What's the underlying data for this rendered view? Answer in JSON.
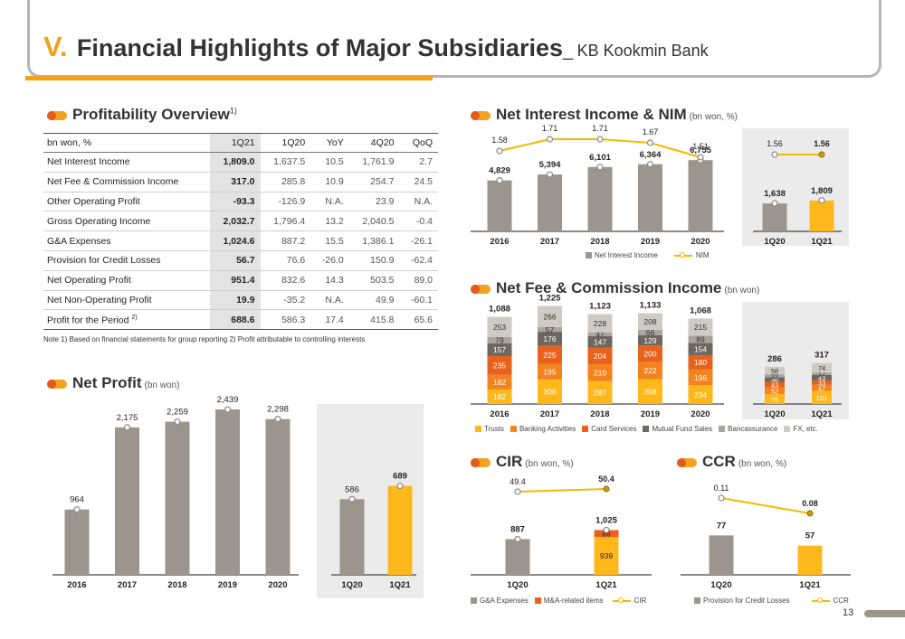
{
  "header": {
    "number": "V.",
    "title": "Financial Highlights of Major Subsidiaries",
    "separator": "_",
    "subtitle": "KB Kookmin Bank"
  },
  "colors": {
    "accent": "#f4a11d",
    "accent_dark": "#e25a1c",
    "bar_gray": "#9b958d",
    "bar_yellow": "#ffb81c",
    "panel_bg": "#ebebeb"
  },
  "profitability": {
    "title": "Profitability Overview",
    "footnote_mark": "1)",
    "columns": [
      "bn won, %",
      "1Q21",
      "1Q20",
      "YoY",
      "4Q20",
      "QoQ"
    ],
    "rows": [
      [
        "Net Interest Income",
        "1,809.0",
        "1,637.5",
        "10.5",
        "1,761.9",
        "2.7"
      ],
      [
        "Net Fee & Commission Income",
        "317.0",
        "285.8",
        "10.9",
        "254.7",
        "24.5"
      ],
      [
        "Other Operating Profit",
        "-93.3",
        "-126.9",
        "N.A.",
        "23.9",
        "N.A."
      ],
      [
        "Gross Operating Income",
        "2,032.7",
        "1,796.4",
        "13.2",
        "2,040.5",
        "-0.4"
      ],
      [
        "G&A Expenses",
        "1,024.6",
        "887.2",
        "15.5",
        "1,386.1",
        "-26.1"
      ],
      [
        "Provision for Credit Losses",
        "56.7",
        "76.6",
        "-26.0",
        "150.9",
        "-62.4"
      ],
      [
        "Net Operating Profit",
        "951.4",
        "832.6",
        "14.3",
        "503.5",
        "89.0"
      ],
      [
        "Net Non-Operating Profit",
        "19.9",
        "-35.2",
        "N.A.",
        "49.9",
        "-60.1"
      ],
      [
        "Profit for the Period",
        "688.6",
        "586.3",
        "17.4",
        "415.8",
        "65.6"
      ]
    ],
    "row9_mark": "2)",
    "note": "Note 1) Based on financial statements for group reporting   2) Profit attributable to controlling interests"
  },
  "net_profit": {
    "title": "Net Profit",
    "unit": "(bn won)"
  },
  "nii": {
    "title": "Net Interest Income & NIM",
    "unit": "(bn won, %)",
    "legend_bar": "Net Interest Income",
    "legend_line": "NIM"
  },
  "fee": {
    "title": "Net Fee & Commission Income",
    "unit": "(bn won)",
    "legend": [
      "Trusts",
      "Banking Activities",
      "Card Services",
      "Mutual Fund Sales",
      "Bancassurance",
      "FX, etc."
    ]
  },
  "cir": {
    "title": "CIR",
    "unit": "(bn won, %)",
    "legend": [
      "G&A Expenses",
      "M&A-related items",
      "CIR"
    ]
  },
  "ccr": {
    "title": "CCR",
    "unit": "(bn won, %)",
    "legend": [
      "Provision for Credit Losses",
      "CCR"
    ]
  },
  "page_number": "13",
  "chart_data": [
    {
      "id": "net_profit_annual",
      "type": "bar",
      "categories": [
        "2016",
        "2017",
        "2018",
        "2019",
        "2020"
      ],
      "values": [
        964,
        2175,
        2259,
        2439,
        2298
      ],
      "labels": [
        "964",
        "2,175",
        "2,259",
        "2,439",
        "2,298"
      ],
      "ylim": [
        0,
        2800
      ]
    },
    {
      "id": "net_profit_quarterly",
      "type": "bar",
      "categories": [
        "1Q20",
        "1Q21"
      ],
      "values": [
        586,
        689
      ],
      "labels": [
        "586",
        "689"
      ],
      "ylim": [
        0,
        1400
      ]
    },
    {
      "id": "nii_annual",
      "type": "bar",
      "categories": [
        "2016",
        "2017",
        "2018",
        "2019",
        "2020"
      ],
      "series": [
        {
          "name": "Net Interest Income",
          "values": [
            4829,
            5394,
            6101,
            6364,
            6755
          ],
          "labels": [
            "4,829",
            "5,394",
            "6,101",
            "6,364",
            "6,755"
          ]
        },
        {
          "name": "NIM",
          "type": "line",
          "values": [
            1.58,
            1.71,
            1.71,
            1.67,
            1.51
          ],
          "labels": [
            "1.58",
            "1.71",
            "1.71",
            "1.67",
            "1.51"
          ]
        }
      ],
      "ylim": [
        0,
        12000
      ],
      "y2lim": [
        1.0,
        1.8
      ]
    },
    {
      "id": "nii_quarterly",
      "type": "bar",
      "categories": [
        "1Q20",
        "1Q21"
      ],
      "series": [
        {
          "name": "Net Interest Income",
          "values": [
            1638,
            1809
          ],
          "labels": [
            "1,638",
            "1,809"
          ]
        },
        {
          "name": "NIM",
          "type": "line",
          "values": [
            1.56,
            1.56
          ],
          "labels": [
            "1.56",
            "1.56"
          ]
        }
      ],
      "ylim": [
        0,
        3600
      ]
    },
    {
      "id": "fee_annual",
      "type": "stacked-bar",
      "categories": [
        "2016",
        "2017",
        "2018",
        "2019",
        "2020"
      ],
      "series": [
        {
          "name": "Trusts",
          "values": [
            182,
            306,
            287,
            308,
            234
          ]
        },
        {
          "name": "Banking Activities",
          "values": [
            182,
            195,
            210,
            222,
            196
          ]
        },
        {
          "name": "Card Services",
          "values": [
            235,
            225,
            204,
            200,
            180
          ]
        },
        {
          "name": "Mutual Fund Sales",
          "values": [
            157,
            176,
            147,
            129,
            154
          ]
        },
        {
          "name": "Bancassurance",
          "values": [
            79,
            57,
            47,
            66,
            89
          ]
        },
        {
          "name": "FX, etc.",
          "values": [
            253,
            266,
            228,
            208,
            215
          ]
        }
      ],
      "totals": [
        "1,088",
        "1,225",
        "1,123",
        "1,133",
        "1,068"
      ],
      "ylim": [
        0,
        1300
      ]
    },
    {
      "id": "fee_quarterly",
      "type": "stacked-bar",
      "categories": [
        "1Q20",
        "1Q21"
      ],
      "series": [
        {
          "name": "Trusts",
          "values": [
            75,
            101
          ]
        },
        {
          "name": "Banking Activities",
          "values": [
            52,
            47
          ]
        },
        {
          "name": "Card Services",
          "values": [
            43,
            33
          ]
        },
        {
          "name": "Mutual Fund Sales",
          "values": [
            36,
            43
          ]
        },
        {
          "name": "Bancassurance",
          "values": [
            22,
            17
          ]
        },
        {
          "name": "FX, etc.",
          "values": [
            58,
            74
          ]
        }
      ],
      "totals": [
        "286",
        "317"
      ],
      "ylim": [
        0,
        650
      ]
    },
    {
      "id": "cir",
      "type": "stacked-bar",
      "categories": [
        "1Q20",
        "1Q21"
      ],
      "series": [
        {
          "name": "G&A Expenses",
          "values": [
            887,
            939
          ]
        },
        {
          "name": "M&A-related items",
          "values": [
            0,
            86
          ],
          "labels": [
            "",
            "86"
          ]
        },
        {
          "name": "CIR",
          "type": "line",
          "values": [
            49.4,
            50.4
          ],
          "labels": [
            "49.4",
            "50.4"
          ]
        }
      ],
      "totals": [
        "887",
        "1,025"
      ],
      "ylim": [
        0,
        1500
      ]
    },
    {
      "id": "ccr",
      "type": "bar",
      "categories": [
        "1Q20",
        "1Q21"
      ],
      "series": [
        {
          "name": "Provision for Credit Losses",
          "values": [
            77,
            57
          ],
          "labels": [
            "77",
            "57"
          ]
        },
        {
          "name": "CCR",
          "type": "line",
          "values": [
            0.11,
            0.08
          ],
          "labels": [
            "0.11",
            "0.08"
          ]
        }
      ],
      "ylim": [
        0,
        120
      ]
    }
  ]
}
